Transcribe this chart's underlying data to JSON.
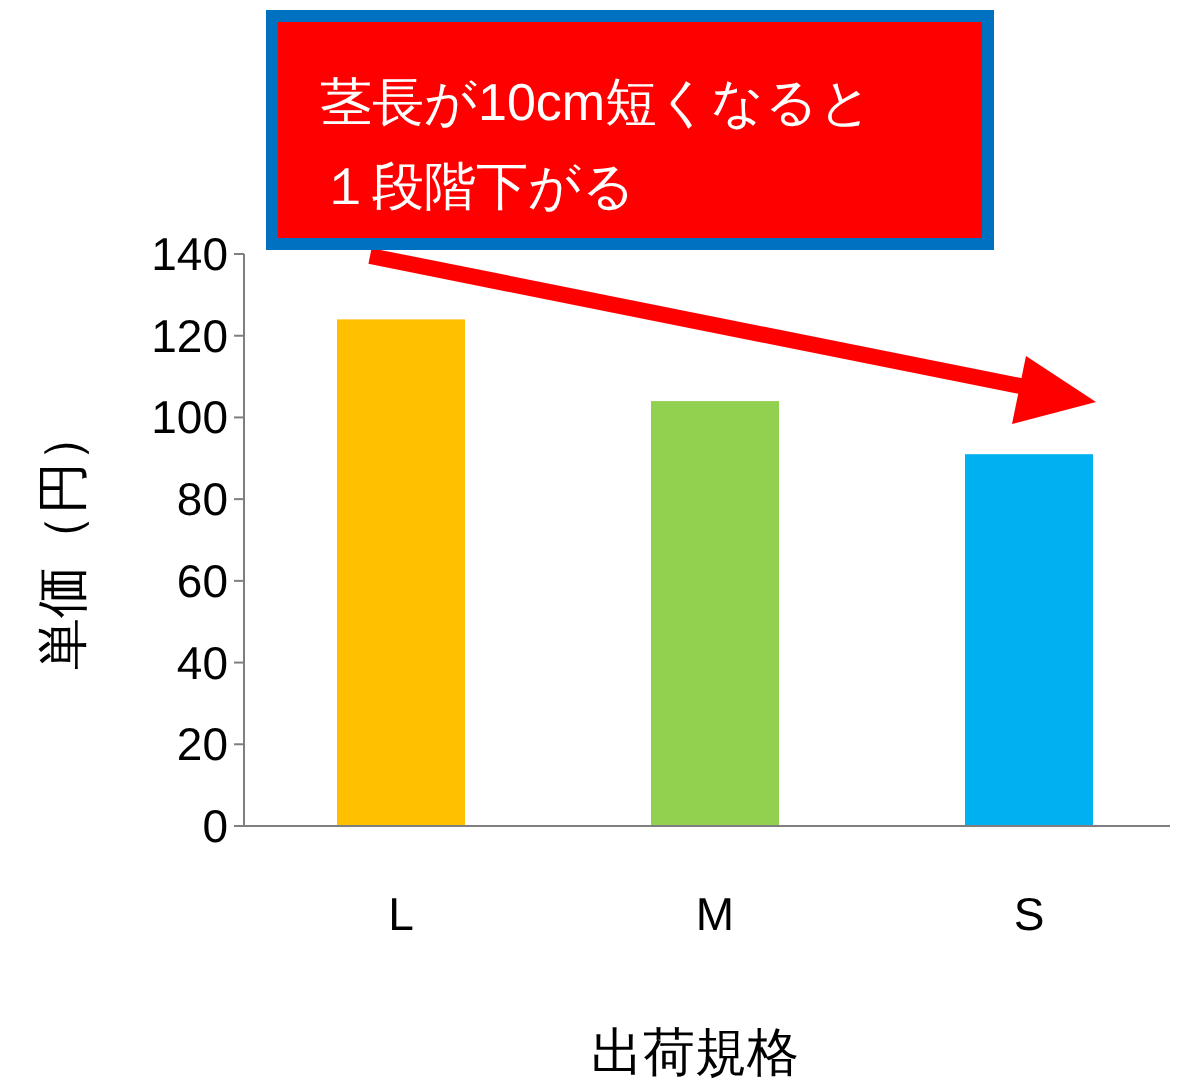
{
  "chart_data": {
    "type": "bar",
    "categories": [
      "L",
      "M",
      "S"
    ],
    "values": [
      124,
      104,
      91
    ],
    "colors": [
      "#ffc000",
      "#92d050",
      "#00b0f0"
    ],
    "ylim": [
      0,
      140
    ],
    "yticks": [
      0,
      20,
      40,
      60,
      80,
      100,
      120,
      140
    ],
    "xlabel": "出荷規格",
    "ylabel": "単価（円）",
    "annotations": [
      "茎長が10cm短くなると",
      "１段階下がる"
    ],
    "grid": false
  }
}
